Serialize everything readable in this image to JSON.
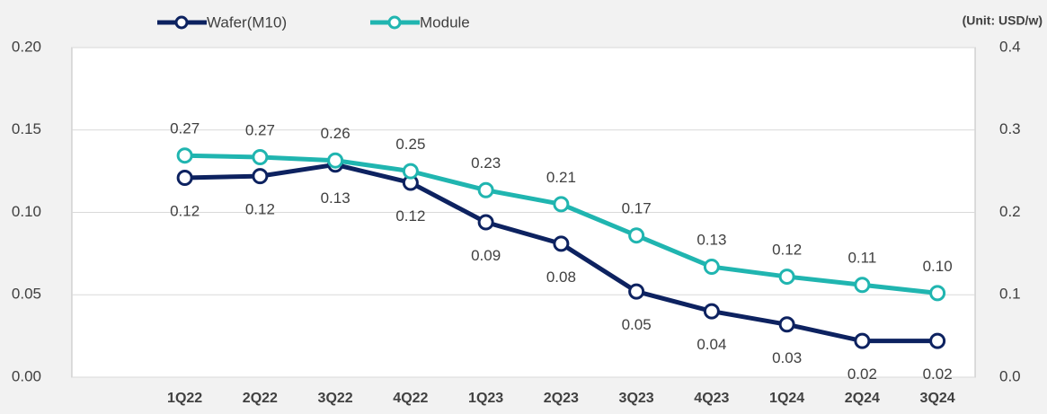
{
  "chart_data": {
    "type": "line",
    "unit_note": "(Unit: USD/w)",
    "categories": [
      "1Q22",
      "2Q22",
      "3Q22",
      "4Q22",
      "1Q23",
      "2Q23",
      "3Q23",
      "4Q23",
      "1Q24",
      "2Q24",
      "3Q24"
    ],
    "series": [
      {
        "name": "Wafer(M10)",
        "color": "#0d2260",
        "axis": "y",
        "values": [
          0.121,
          0.122,
          0.129,
          0.118,
          0.094,
          0.081,
          0.052,
          0.04,
          0.032,
          0.022,
          0.022
        ],
        "value_labels": [
          "0.12",
          "0.12",
          "0.13",
          "0.12",
          "0.09",
          "0.08",
          "0.05",
          "0.04",
          "0.03",
          "0.02",
          "0.02"
        ]
      },
      {
        "name": "Module",
        "color": "#20b5b0",
        "axis": "y2",
        "values": [
          0.269,
          0.267,
          0.263,
          0.25,
          0.227,
          0.21,
          0.172,
          0.134,
          0.122,
          0.112,
          0.102
        ],
        "value_labels": [
          "0.27",
          "0.27",
          "0.26",
          "0.25",
          "0.23",
          "0.21",
          "0.17",
          "0.13",
          "0.12",
          "0.11",
          "0.10"
        ]
      }
    ],
    "ylim": [
      0,
      0.2
    ],
    "yticks": [
      {
        "value": 0,
        "label": "0.00"
      },
      0.05,
      {
        "value": 0.1,
        "label": "0.10"
      },
      0.15,
      {
        "value": 0.2,
        "label": "0.20"
      }
    ],
    "y2lim": [
      0,
      0.4
    ],
    "y2ticks": [
      {
        "value": 0,
        "label": "0.0"
      },
      0.1,
      0.2,
      0.3,
      0.4
    ],
    "grid": true,
    "legend": "top"
  }
}
